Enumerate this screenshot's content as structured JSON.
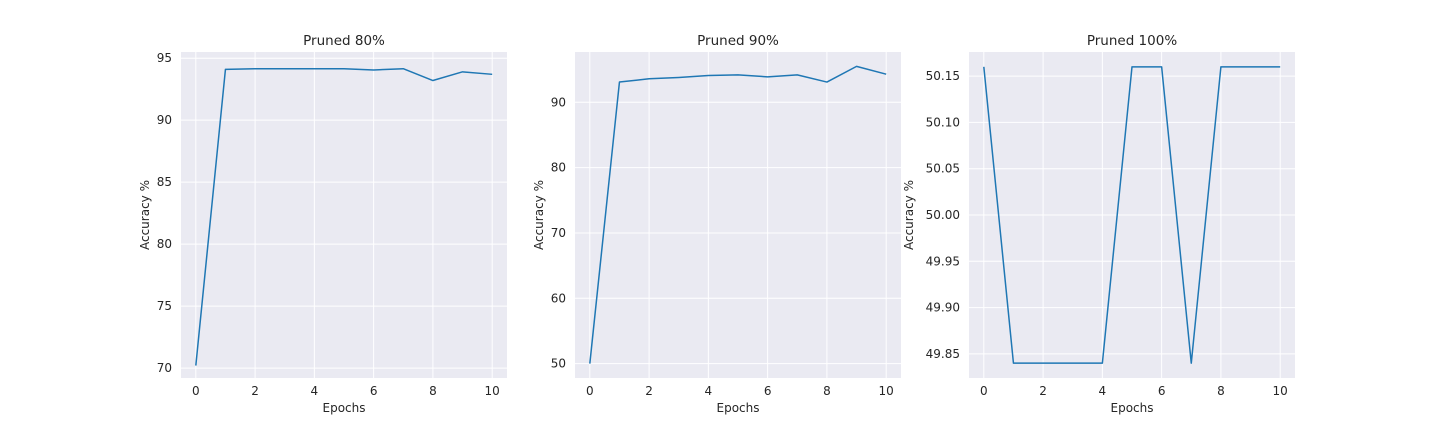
{
  "chart_data": [
    {
      "type": "line",
      "title": "Pruned 80%",
      "xlabel": "Epochs",
      "ylabel": "Accuracy %",
      "x": [
        0,
        1,
        2,
        3,
        4,
        5,
        6,
        7,
        8,
        9,
        10
      ],
      "series": [
        {
          "values": [
            70.2,
            94.1,
            94.15,
            94.15,
            94.15,
            94.15,
            94.05,
            94.15,
            93.2,
            93.9,
            93.7
          ]
        }
      ],
      "xlim": [
        -0.5,
        10.5
      ],
      "ylim": [
        69.2,
        95.5
      ],
      "xticks": [
        0,
        2,
        4,
        6,
        8,
        10
      ],
      "yticks": [
        70,
        75,
        80,
        85,
        90,
        95
      ],
      "grid": true,
      "color": "#1f77b4"
    },
    {
      "type": "line",
      "title": "Pruned 90%",
      "xlabel": "Epochs",
      "ylabel": "Accuracy %",
      "x": [
        0,
        1,
        2,
        3,
        4,
        5,
        6,
        7,
        8,
        9,
        10
      ],
      "series": [
        {
          "values": [
            50.0,
            93.1,
            93.6,
            93.8,
            94.1,
            94.2,
            93.9,
            94.2,
            93.1,
            95.5,
            94.3
          ]
        }
      ],
      "xlim": [
        -0.5,
        10.5
      ],
      "ylim": [
        47.8,
        97.7
      ],
      "xticks": [
        0,
        2,
        4,
        6,
        8,
        10
      ],
      "yticks": [
        50,
        60,
        70,
        80,
        90
      ],
      "grid": true,
      "color": "#1f77b4"
    },
    {
      "type": "line",
      "title": "Pruned 100%",
      "xlabel": "Epochs",
      "ylabel": "Accuracy %",
      "x": [
        0,
        1,
        2,
        3,
        4,
        5,
        6,
        7,
        8,
        9,
        10
      ],
      "series": [
        {
          "values": [
            50.16,
            49.84,
            49.84,
            49.84,
            49.84,
            50.16,
            50.16,
            49.84,
            50.16,
            50.16,
            50.16
          ]
        }
      ],
      "xlim": [
        -0.5,
        10.5
      ],
      "ylim": [
        49.824,
        50.176
      ],
      "xticks": [
        0,
        2,
        4,
        6,
        8,
        10
      ],
      "yticks": [
        49.85,
        49.9,
        49.95,
        50.0,
        50.05,
        50.1,
        50.15
      ],
      "ytick_decimals": 2,
      "grid": true,
      "color": "#1f77b4"
    }
  ]
}
